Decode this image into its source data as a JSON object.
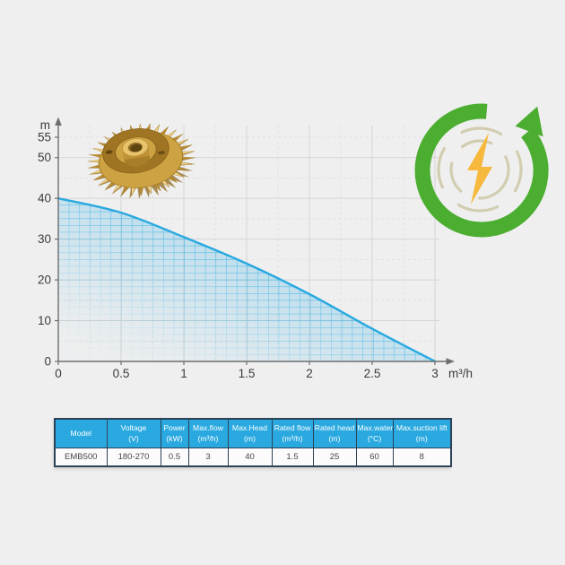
{
  "colors": {
    "background": "#efefef",
    "curve_blue": "#29a9e0",
    "area_blue": "#35b1e8",
    "grid_major": "#d5d5d5",
    "grid_minor": "#e2e2e2",
    "axis": "#6e6e6e",
    "text": "#3b3b3b",
    "table_header_bg": "#29a9e0",
    "table_border": "#2c4257",
    "green": "#4cae31",
    "bolt_yellow": "#f6b93e",
    "dashed_circle_beige": "#d2cdb0",
    "brass_light": "#f0d189",
    "brass_mid": "#cda243",
    "brass_dark": "#8d6a20"
  },
  "icons": {
    "energy": "energy-saving-recycle-lightning-icon",
    "impeller": "brass-pump-impeller-image"
  },
  "chart_data": [
    {
      "type": "area",
      "title": "",
      "xlabel": "m³/h",
      "ylabel": "m",
      "series": [
        {
          "name": "head-vs-flow-curve",
          "x": [
            0,
            0.5,
            1,
            1.5,
            2,
            2.5,
            3
          ],
          "y": [
            40,
            36.5,
            30.5,
            24,
            16.5,
            8,
            0
          ]
        }
      ],
      "xtick_labels": [
        "0",
        "0.5",
        "1",
        "1.5",
        "2",
        "2.5",
        "3"
      ],
      "xtick_values": [
        0,
        0.5,
        1,
        1.5,
        2,
        2.5,
        3
      ],
      "ytick_labels": [
        "0",
        "10",
        "20",
        "30",
        "40",
        "50",
        "55"
      ],
      "ytick_values": [
        0,
        10,
        20,
        30,
        40,
        50,
        55
      ],
      "xlim": [
        0,
        3
      ],
      "ylim": [
        0,
        55
      ],
      "grid": true,
      "legend": "none"
    },
    {
      "type": "table",
      "columns": [
        {
          "label": "Model",
          "unit": "",
          "value": "EMB500"
        },
        {
          "label": "Voltage",
          "unit": "(V)",
          "value": "180-270"
        },
        {
          "label": "Power",
          "unit": "(kW)",
          "value": "0.5"
        },
        {
          "label": "Max.flow",
          "unit": "(m³/h)",
          "value": "3"
        },
        {
          "label": "Max.Head",
          "unit": "(m)",
          "value": "40"
        },
        {
          "label": "Rated flow",
          "unit": "(m³/h)",
          "value": "1.5"
        },
        {
          "label": "Rated head",
          "unit": "(m)",
          "value": "25"
        },
        {
          "label": "Max.water",
          "unit": "(°C)",
          "value": "60"
        },
        {
          "label": "Max.suction lift",
          "unit": "(m)",
          "value": "8"
        }
      ]
    }
  ]
}
